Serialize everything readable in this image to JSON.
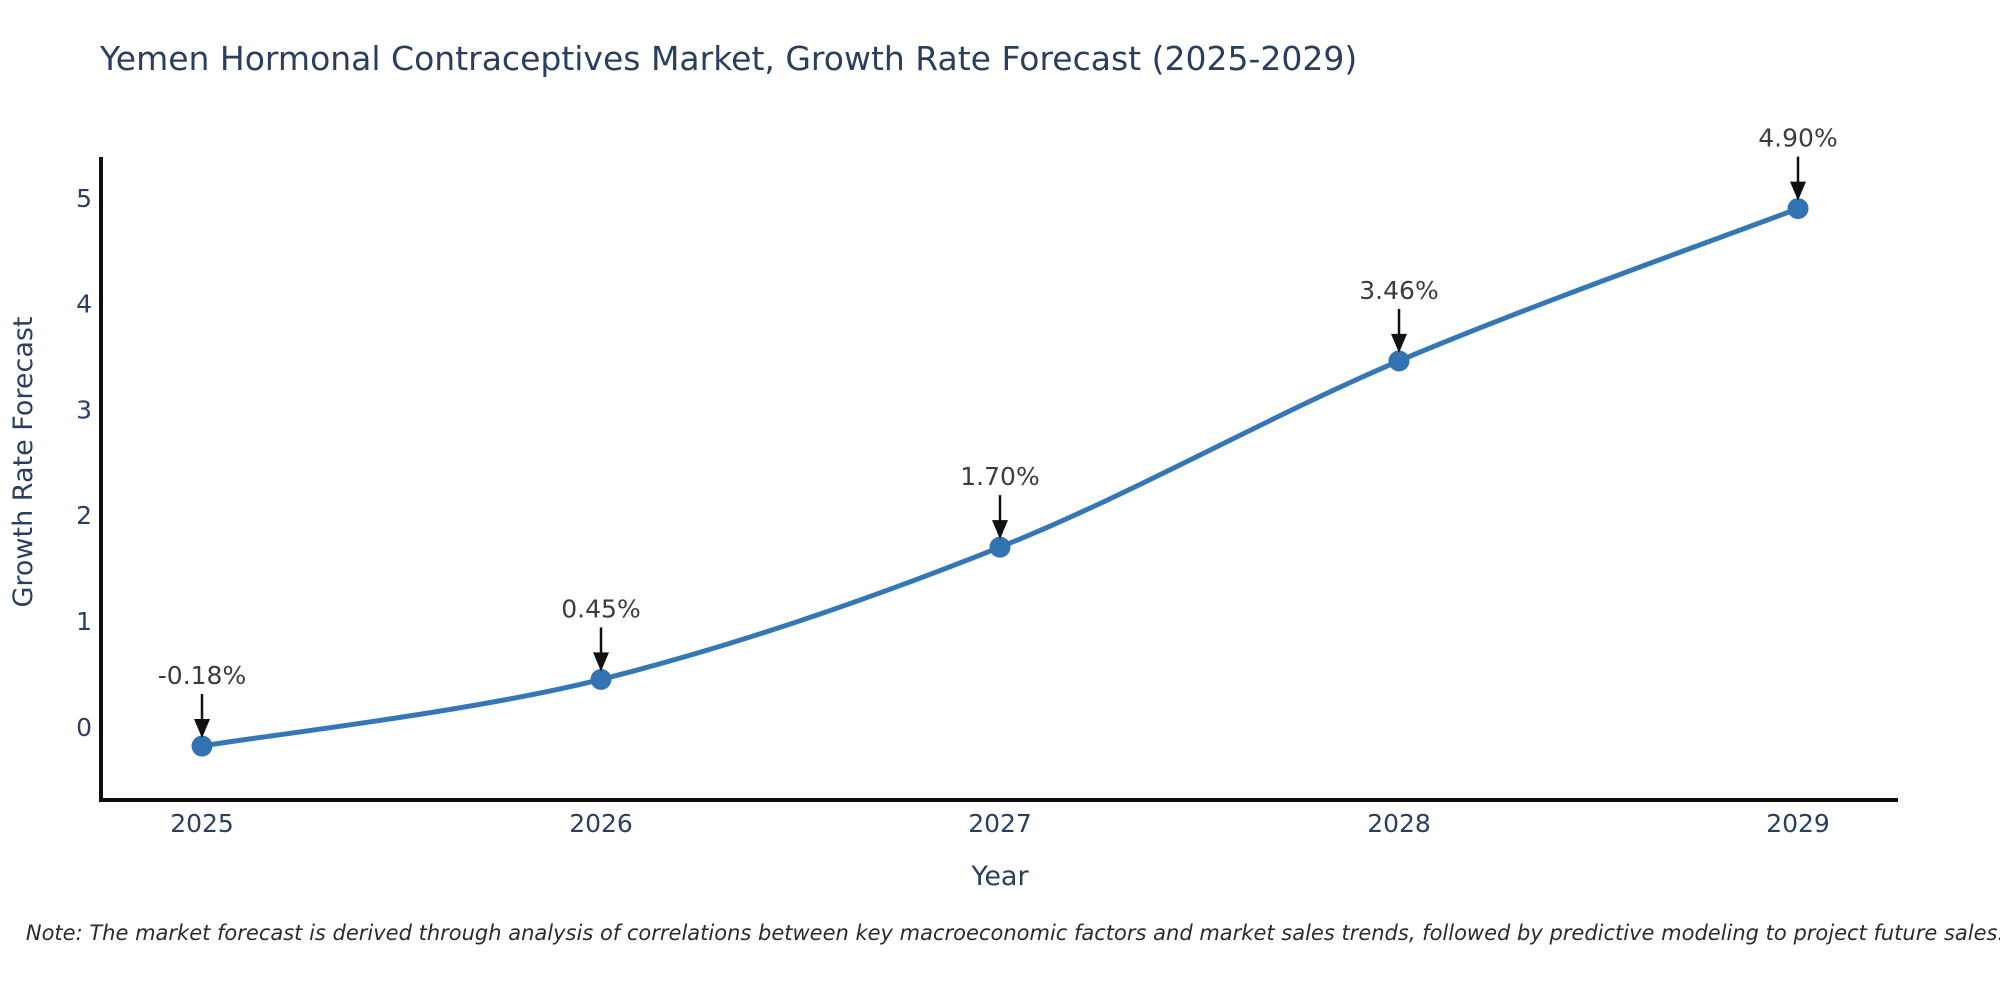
{
  "title": "Yemen Hormonal Contraceptives Market, Growth Rate Forecast (2025-2029)",
  "note": "Note: The market forecast is derived through analysis of correlations between key macroeconomic factors and market sales trends, followed by predictive modeling to project future sales.",
  "chart_data": {
    "type": "line",
    "title": "Yemen Hormonal Contraceptives Market, Growth Rate Forecast (2025-2029)",
    "xlabel": "Year",
    "ylabel": "Growth Rate Forecast",
    "categories": [
      "2025",
      "2026",
      "2027",
      "2028",
      "2029"
    ],
    "x": [
      2025,
      2026,
      2027,
      2028,
      2029
    ],
    "series": [
      {
        "name": "Growth Rate Forecast",
        "values": [
          -0.18,
          0.45,
          1.7,
          3.46,
          4.9
        ],
        "point_labels": [
          "-0.18%",
          "0.45%",
          "1.70%",
          "3.46%",
          "4.90%"
        ]
      }
    ],
    "ylim": [
      -0.72,
      5.42
    ],
    "yticks": [
      0,
      1,
      2,
      3,
      4,
      5
    ],
    "grid": false,
    "legend_position": "none",
    "marker": "circle",
    "annotation_arrows": true,
    "note": "Note: The market forecast is derived through analysis of correlations between key macroeconomic factors and market sales trends, followed by predictive modeling to project future sales."
  },
  "colors": {
    "line": "#3577b5",
    "marker": "#3273b1",
    "axis": "#0d0d0d",
    "text": "#2a3f5f",
    "annotation_text": "#3c3c3c",
    "arrow": "#111111",
    "note_text": "#2b2b2b",
    "background": "#ffffff"
  }
}
